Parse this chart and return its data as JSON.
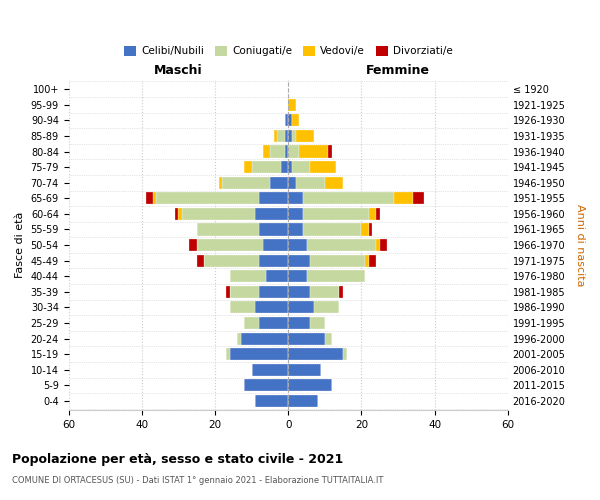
{
  "age_groups": [
    "0-4",
    "5-9",
    "10-14",
    "15-19",
    "20-24",
    "25-29",
    "30-34",
    "35-39",
    "40-44",
    "45-49",
    "50-54",
    "55-59",
    "60-64",
    "65-69",
    "70-74",
    "75-79",
    "80-84",
    "85-89",
    "90-94",
    "95-99",
    "100+"
  ],
  "birth_years": [
    "2016-2020",
    "2011-2015",
    "2006-2010",
    "2001-2005",
    "1996-2000",
    "1991-1995",
    "1986-1990",
    "1981-1985",
    "1976-1980",
    "1971-1975",
    "1966-1970",
    "1961-1965",
    "1956-1960",
    "1951-1955",
    "1946-1950",
    "1941-1945",
    "1936-1940",
    "1931-1935",
    "1926-1930",
    "1921-1925",
    "≤ 1920"
  ],
  "males": {
    "celibi": [
      9,
      12,
      10,
      16,
      13,
      8,
      9,
      8,
      6,
      8,
      7,
      8,
      9,
      8,
      5,
      2,
      1,
      1,
      1,
      0,
      0
    ],
    "coniugati": [
      0,
      0,
      0,
      1,
      1,
      4,
      7,
      8,
      10,
      15,
      18,
      17,
      20,
      28,
      13,
      8,
      4,
      2,
      0,
      0,
      0
    ],
    "vedovi": [
      0,
      0,
      0,
      0,
      0,
      0,
      0,
      0,
      0,
      0,
      0,
      0,
      1,
      1,
      1,
      2,
      2,
      1,
      0,
      0,
      0
    ],
    "divorziati": [
      0,
      0,
      0,
      0,
      0,
      0,
      0,
      1,
      0,
      2,
      2,
      0,
      1,
      2,
      0,
      0,
      0,
      0,
      0,
      0,
      0
    ]
  },
  "females": {
    "nubili": [
      8,
      12,
      9,
      15,
      10,
      6,
      7,
      6,
      5,
      6,
      5,
      4,
      4,
      4,
      2,
      1,
      0,
      1,
      1,
      0,
      0
    ],
    "coniugate": [
      0,
      0,
      0,
      1,
      2,
      4,
      7,
      8,
      16,
      15,
      19,
      16,
      18,
      25,
      8,
      5,
      3,
      1,
      0,
      0,
      0
    ],
    "vedove": [
      0,
      0,
      0,
      0,
      0,
      0,
      0,
      0,
      0,
      1,
      1,
      2,
      2,
      5,
      5,
      7,
      8,
      5,
      2,
      2,
      0
    ],
    "divorziate": [
      0,
      0,
      0,
      0,
      0,
      0,
      0,
      1,
      0,
      2,
      2,
      1,
      1,
      3,
      0,
      0,
      1,
      0,
      0,
      0,
      0
    ]
  },
  "colors": {
    "celibi_nubili": "#4472c4",
    "coniugati": "#c5d8a0",
    "vedovi": "#ffc000",
    "divorziati": "#c00000"
  },
  "xlim": 60,
  "title": "Popolazione per età, sesso e stato civile - 2021",
  "subtitle": "COMUNE DI ORTACESUS (SU) - Dati ISTAT 1° gennaio 2021 - Elaborazione TUTTAITALIA.IT",
  "xlabel_left": "Maschi",
  "xlabel_right": "Femmine",
  "ylabel_left": "Fasce di età",
  "ylabel_right": "Anni di nascita",
  "legend_labels": [
    "Celibi/Nubili",
    "Coniugati/e",
    "Vedovi/e",
    "Divorziati/e"
  ],
  "bg_color": "#ffffff",
  "grid_color": "#cccccc"
}
